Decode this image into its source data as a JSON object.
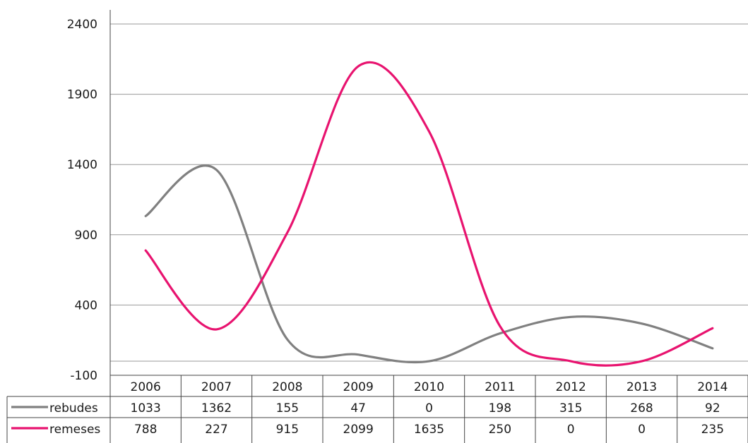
{
  "chart_data": {
    "type": "line",
    "smooth": true,
    "categories": [
      "2006",
      "2007",
      "2008",
      "2009",
      "2010",
      "2011",
      "2012",
      "2013",
      "2014"
    ],
    "series": [
      {
        "name": "rebudes",
        "color": "#808080",
        "values": [
          1033,
          1362,
          155,
          47,
          0,
          198,
          315,
          268,
          92
        ]
      },
      {
        "name": "remeses",
        "color": "#e8136f",
        "values": [
          788,
          227,
          915,
          2099,
          1635,
          250,
          0,
          0,
          235
        ]
      }
    ],
    "yticks": [
      "-100",
      "400",
      "900",
      "1400",
      "1900",
      "2400"
    ],
    "ylim": [
      -100,
      2400
    ],
    "grid": true,
    "legend": "data-table",
    "title": "",
    "xlabel": "",
    "ylabel": ""
  }
}
